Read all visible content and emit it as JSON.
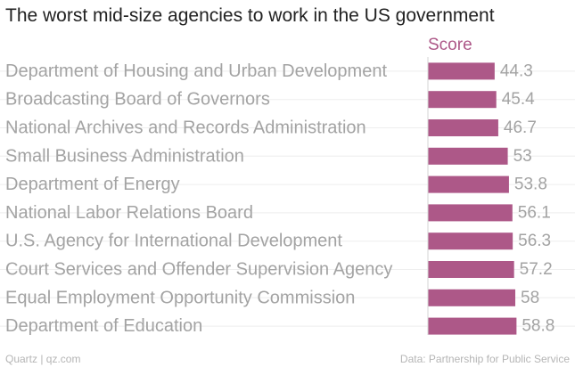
{
  "colors": {
    "bar": "#ad5888",
    "header": "#ad5888",
    "label": "#a3a3a3",
    "grid": "#eeeeee"
  },
  "chart_data": {
    "type": "bar",
    "orientation": "horizontal",
    "title": "The worst mid-size agencies to work in the US government",
    "value_header": "Score",
    "categories": [
      "Department of Housing and Urban Development",
      "Broadcasting Board of Governors",
      "National Archives and Records Administration",
      "Small Business Administration",
      "Department of Energy",
      "National Labor Relations Board",
      "U.S. Agency for International Development",
      "Court Services and Offender Supervision Agency",
      "Equal Employment Opportunity Commission",
      "Department of Education"
    ],
    "values": [
      44.3,
      45.4,
      46.7,
      53,
      53.8,
      56.1,
      56.3,
      57.2,
      58,
      58.8
    ],
    "value_labels": [
      "44.3",
      "45.4",
      "46.7",
      "53",
      "53.8",
      "56.1",
      "56.3",
      "57.2",
      "58",
      "58.8"
    ],
    "xlim": [
      0,
      100
    ],
    "grid": false,
    "legend": "none"
  },
  "footer": {
    "source_left": "Quartz | qz.com",
    "source_right": "Data: Partnership for Public Service"
  }
}
